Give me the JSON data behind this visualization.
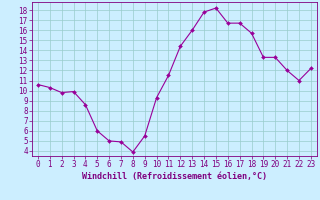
{
  "x": [
    0,
    1,
    2,
    3,
    4,
    5,
    6,
    7,
    8,
    9,
    10,
    11,
    12,
    13,
    14,
    15,
    16,
    17,
    18,
    19,
    20,
    21,
    22,
    23
  ],
  "y": [
    10.6,
    10.3,
    9.8,
    9.9,
    8.6,
    6.0,
    5.0,
    4.9,
    3.9,
    5.5,
    9.3,
    11.5,
    14.4,
    16.0,
    17.8,
    18.2,
    16.7,
    16.7,
    15.7,
    13.3,
    13.3,
    12.0,
    11.0,
    12.2
  ],
  "line_color": "#990099",
  "marker": "D",
  "marker_size": 2.0,
  "bg_color": "#cceeff",
  "grid_color": "#99cccc",
  "xlabel": "Windchill (Refroidissement éolien,°C)",
  "xlim": [
    -0.5,
    23.5
  ],
  "ylim": [
    3.5,
    18.8
  ],
  "yticks": [
    4,
    5,
    6,
    7,
    8,
    9,
    10,
    11,
    12,
    13,
    14,
    15,
    16,
    17,
    18
  ],
  "xticks": [
    0,
    1,
    2,
    3,
    4,
    5,
    6,
    7,
    8,
    9,
    10,
    11,
    12,
    13,
    14,
    15,
    16,
    17,
    18,
    19,
    20,
    21,
    22,
    23
  ],
  "line_color2": "#800080",
  "font_size_label": 6.0,
  "font_size_tick": 5.5
}
